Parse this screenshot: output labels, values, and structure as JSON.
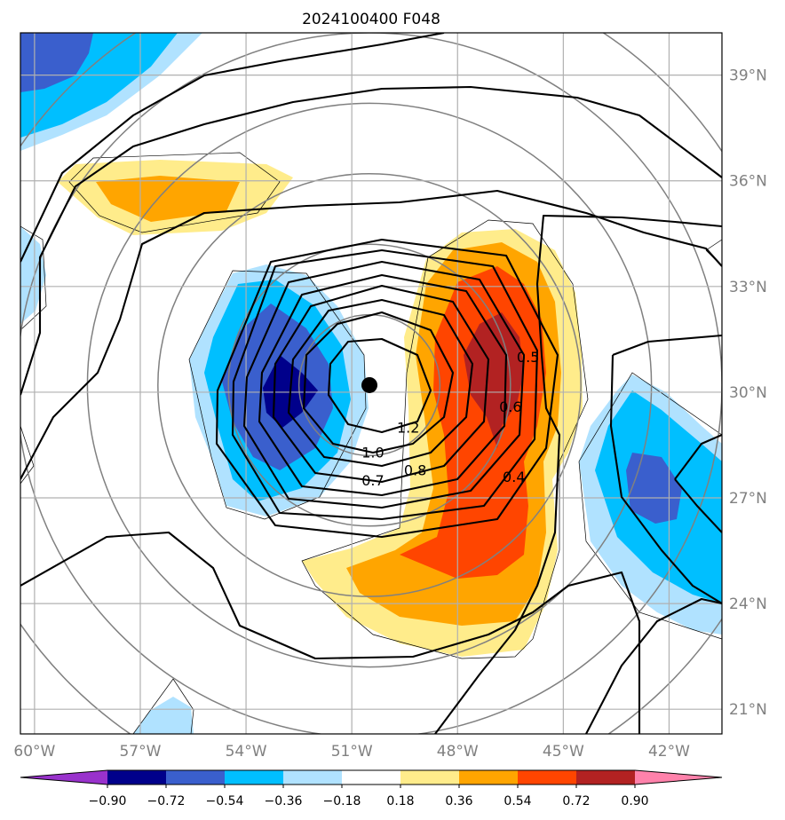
{
  "chart_data": {
    "type": "contour_map",
    "title": "2024100400 F048",
    "projection_center": {
      "lon": -50.5,
      "lat": 30.2
    },
    "lon_range": [
      -60.4,
      -40.5
    ],
    "lat_range": [
      20.3,
      40.2
    ],
    "x_ticks": [
      {
        "lon": -60,
        "label": "60°W"
      },
      {
        "lon": -57,
        "label": "57°W"
      },
      {
        "lon": -54,
        "label": "54°W"
      },
      {
        "lon": -51,
        "label": "51°W"
      },
      {
        "lon": -48,
        "label": "48°W"
      },
      {
        "lon": -45,
        "label": "45°W"
      },
      {
        "lon": -42,
        "label": "42°W"
      }
    ],
    "y_ticks": [
      {
        "lat": 39,
        "label": "39°N"
      },
      {
        "lat": 36,
        "label": "36°N"
      },
      {
        "lat": 33,
        "label": "33°N"
      },
      {
        "lat": 30,
        "label": "30°N"
      },
      {
        "lat": 27,
        "label": "27°N"
      },
      {
        "lat": 24,
        "label": "24°N"
      },
      {
        "lat": 21,
        "label": "21°N"
      }
    ],
    "colorbar": {
      "levels": [
        -0.9,
        -0.72,
        -0.54,
        -0.36,
        -0.18,
        0.18,
        0.36,
        0.54,
        0.72,
        0.9
      ],
      "labels": [
        "−0.90",
        "−0.72",
        "−0.54",
        "−0.36",
        "−0.18",
        "0.18",
        "0.36",
        "0.54",
        "0.72",
        "0.90"
      ],
      "colors": [
        "#9932CC",
        "#00008B",
        "#3A5FCD",
        "#00BFFF",
        "#B0E2FF",
        "#FFFFFF",
        "#FFEC8B",
        "#FFA500",
        "#FF4500",
        "#B22222",
        "#FF82AB"
      ],
      "extend": "both"
    },
    "contour_labels": [
      {
        "text": "1.2",
        "lon": -49.4,
        "lat": 29.0
      },
      {
        "text": "1.0",
        "lon": -50.4,
        "lat": 28.3
      },
      {
        "text": "0.8",
        "lon": -49.2,
        "lat": 27.8
      },
      {
        "text": "0.7",
        "lon": -50.4,
        "lat": 27.5
      },
      {
        "text": "0.6",
        "lon": -46.5,
        "lat": 29.6
      },
      {
        "text": "0.5",
        "lon": -46.0,
        "lat": 31.0
      },
      {
        "text": "0.4",
        "lon": -46.4,
        "lat": 27.6
      }
    ],
    "center_marker": {
      "lon": -50.5,
      "lat": 30.2
    },
    "range_rings_deg": [
      2,
      4,
      6,
      8,
      10,
      12
    ]
  }
}
